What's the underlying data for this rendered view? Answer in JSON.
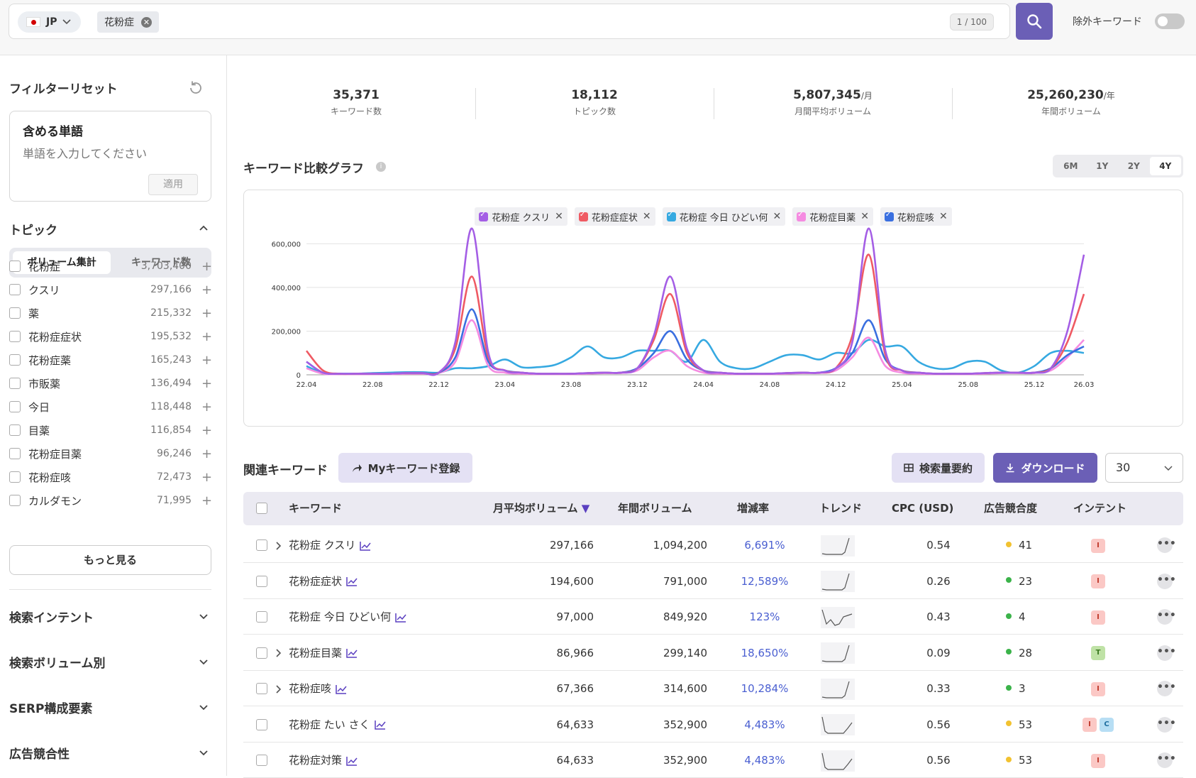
{
  "search": {
    "country": "JP",
    "chip": "花粉症",
    "chip_remove": "✕",
    "counter": "1 / 100",
    "exclude_label": "除外キーワード"
  },
  "sidebar": {
    "reset_label": "フィルターリセット",
    "include_title": "含める単語",
    "include_placeholder": "単語を入力してください",
    "apply_label": "適用",
    "topic_title": "トピック",
    "seg_volume": "ボリューム集計",
    "seg_keywords": "キーワード数",
    "topics": [
      {
        "label": "花粉症",
        "value": "3,703,400"
      },
      {
        "label": "クスリ",
        "value": "297,166"
      },
      {
        "label": "薬",
        "value": "215,332"
      },
      {
        "label": "花粉症症状",
        "value": "195,532"
      },
      {
        "label": "花粉症薬",
        "value": "165,243"
      },
      {
        "label": "市販薬",
        "value": "136,494"
      },
      {
        "label": "今日",
        "value": "118,448"
      },
      {
        "label": "目薬",
        "value": "116,854"
      },
      {
        "label": "花粉症目薬",
        "value": "96,246"
      },
      {
        "label": "花粉症咳",
        "value": "72,473"
      },
      {
        "label": "カルダモン",
        "value": "71,995"
      }
    ],
    "more_label": "もっと見る",
    "sections": [
      "検索インテント",
      "検索ボリューム別",
      "SERP構成要素",
      "広告競合性"
    ]
  },
  "stats": [
    {
      "value": "35,371",
      "unit": "",
      "label": "キーワード数"
    },
    {
      "value": "18,112",
      "unit": "",
      "label": "トピック数"
    },
    {
      "value": "5,807,345",
      "unit": "/月",
      "label": "月間平均ボリューム"
    },
    {
      "value": "25,260,230",
      "unit": "/年",
      "label": "年間ボリューム"
    }
  ],
  "chart_section": {
    "title": "キーワード比較グラフ",
    "info": "i",
    "ranges": [
      "6M",
      "1Y",
      "2Y",
      "4Y"
    ],
    "active_range": "4Y"
  },
  "chart_data": {
    "type": "line",
    "x": [
      "22.04",
      "22.05",
      "22.06",
      "22.07",
      "22.08",
      "22.09",
      "22.10",
      "22.11",
      "22.12",
      "23.01",
      "23.02",
      "23.03",
      "23.04",
      "23.05",
      "23.06",
      "23.07",
      "23.08",
      "23.09",
      "23.10",
      "23.11",
      "23.12",
      "24.01",
      "24.02",
      "24.03",
      "24.04",
      "24.05",
      "24.06",
      "24.07",
      "24.08",
      "24.09",
      "24.10",
      "24.11",
      "24.12",
      "25.01",
      "25.02",
      "25.03",
      "25.04",
      "25.05",
      "25.06",
      "25.07",
      "25.08",
      "25.09",
      "25.10",
      "25.11",
      "25.12",
      "26.01",
      "26.02",
      "26.03"
    ],
    "x_tick_labels": [
      "22.04",
      "22.08",
      "22.12",
      "23.04",
      "23.08",
      "23.12",
      "24.04",
      "24.08",
      "24.12",
      "25.04",
      "25.08",
      "25.12",
      "26.03"
    ],
    "ylim": [
      0,
      650000
    ],
    "y_ticks": [
      0,
      200000,
      400000,
      600000
    ],
    "y_tick_labels": [
      "0",
      "200,000",
      "400,000",
      "600,000"
    ],
    "series": [
      {
        "name": "花粉症 クスリ",
        "color": "#a45ee5",
        "values": [
          60000,
          10000,
          5000,
          5000,
          5000,
          5000,
          8000,
          8000,
          10000,
          150000,
          670000,
          100000,
          20000,
          10000,
          5000,
          5000,
          5000,
          8000,
          10000,
          10000,
          30000,
          180000,
          450000,
          120000,
          20000,
          10000,
          5000,
          5000,
          5000,
          8000,
          10000,
          10000,
          30000,
          150000,
          670000,
          110000,
          20000,
          10000,
          5000,
          5000,
          5000,
          8000,
          10000,
          10000,
          10000,
          30000,
          200000,
          550000
        ]
      },
      {
        "name": "花粉症症状",
        "color": "#ef5a63",
        "values": [
          110000,
          20000,
          5000,
          5000,
          5000,
          5000,
          8000,
          8000,
          10000,
          120000,
          450000,
          80000,
          20000,
          10000,
          5000,
          5000,
          5000,
          8000,
          10000,
          10000,
          30000,
          160000,
          370000,
          100000,
          20000,
          10000,
          5000,
          5000,
          5000,
          8000,
          10000,
          10000,
          30000,
          180000,
          550000,
          90000,
          20000,
          10000,
          5000,
          5000,
          5000,
          8000,
          10000,
          10000,
          10000,
          30000,
          150000,
          370000
        ]
      },
      {
        "name": "花粉症 今日 ひどい何",
        "color": "#36a9e1",
        "values": [
          40000,
          8000,
          5000,
          5000,
          8000,
          10000,
          12000,
          12000,
          10000,
          30000,
          30000,
          40000,
          70000,
          35000,
          35000,
          45000,
          80000,
          130000,
          80000,
          80000,
          110000,
          110000,
          110000,
          60000,
          160000,
          60000,
          30000,
          30000,
          60000,
          90000,
          90000,
          70000,
          100000,
          100000,
          160000,
          130000,
          130000,
          60000,
          30000,
          30000,
          60000,
          60000,
          20000,
          10000,
          40000,
          100000,
          110000,
          100000
        ]
      },
      {
        "name": "花粉症目薬",
        "color": "#f58be1",
        "values": [
          30000,
          5000,
          3000,
          3000,
          3000,
          3000,
          5000,
          5000,
          8000,
          60000,
          250000,
          40000,
          10000,
          5000,
          3000,
          3000,
          3000,
          5000,
          8000,
          8000,
          20000,
          80000,
          110000,
          40000,
          10000,
          5000,
          3000,
          3000,
          3000,
          5000,
          8000,
          8000,
          20000,
          80000,
          170000,
          40000,
          10000,
          5000,
          3000,
          3000,
          3000,
          5000,
          8000,
          8000,
          8000,
          20000,
          80000,
          160000
        ]
      },
      {
        "name": "花粉症咳",
        "color": "#3a6fe0",
        "values": [
          60000,
          10000,
          5000,
          5000,
          5000,
          5000,
          8000,
          8000,
          10000,
          80000,
          300000,
          60000,
          20000,
          10000,
          5000,
          5000,
          5000,
          8000,
          10000,
          10000,
          30000,
          100000,
          200000,
          70000,
          20000,
          10000,
          5000,
          5000,
          5000,
          8000,
          10000,
          10000,
          30000,
          100000,
          250000,
          70000,
          20000,
          10000,
          5000,
          5000,
          5000,
          8000,
          10000,
          10000,
          10000,
          30000,
          90000,
          130000
        ]
      }
    ]
  },
  "related": {
    "title": "関連キーワード",
    "my_keyword_btn": "Myキーワード登録",
    "summary_btn": "検索量要約",
    "download_btn": "ダウンロード",
    "page_size": "30",
    "columns": [
      "キーワード",
      "月平均ボリューム",
      "年間ボリューム",
      "増減率",
      "トレンド",
      "CPC (USD)",
      "広告競合度",
      "インテント"
    ],
    "rows": [
      {
        "keyword": "花粉症 クスリ",
        "expand": true,
        "monthly": "297,166",
        "annual": "1,094,200",
        "change": "6,691%",
        "cpc": "0.54",
        "comp": "41",
        "comp_color": "#f2c230",
        "intents": [
          "I"
        ],
        "trend": "rise"
      },
      {
        "keyword": "花粉症症状",
        "expand": false,
        "monthly": "194,600",
        "annual": "791,000",
        "change": "12,589%",
        "cpc": "0.26",
        "comp": "23",
        "comp_color": "#3bb34a",
        "intents": [
          "I"
        ],
        "trend": "rise"
      },
      {
        "keyword": "花粉症 今日 ひどい何",
        "expand": false,
        "monthly": "97,000",
        "annual": "849,920",
        "change": "123%",
        "cpc": "0.43",
        "comp": "4",
        "comp_color": "#3bb34a",
        "intents": [
          "I"
        ],
        "trend": "wave"
      },
      {
        "keyword": "花粉症目薬",
        "expand": true,
        "monthly": "86,966",
        "annual": "299,140",
        "change": "18,650%",
        "cpc": "0.09",
        "comp": "28",
        "comp_color": "#3bb34a",
        "intents": [
          "T"
        ],
        "trend": "rise"
      },
      {
        "keyword": "花粉症咳",
        "expand": true,
        "monthly": "67,366",
        "annual": "314,600",
        "change": "10,284%",
        "cpc": "0.33",
        "comp": "3",
        "comp_color": "#3bb34a",
        "intents": [
          "I"
        ],
        "trend": "rise"
      },
      {
        "keyword": "花粉症 たい さく",
        "expand": false,
        "monthly": "64,633",
        "annual": "352,900",
        "change": "4,483%",
        "cpc": "0.56",
        "comp": "53",
        "comp_color": "#f2c230",
        "intents": [
          "I",
          "C"
        ],
        "trend": "dip"
      },
      {
        "keyword": "花粉症対策",
        "expand": false,
        "monthly": "64,633",
        "annual": "352,900",
        "change": "4,483%",
        "cpc": "0.56",
        "comp": "53",
        "comp_color": "#f2c230",
        "intents": [
          "I"
        ],
        "trend": "dip"
      }
    ]
  }
}
